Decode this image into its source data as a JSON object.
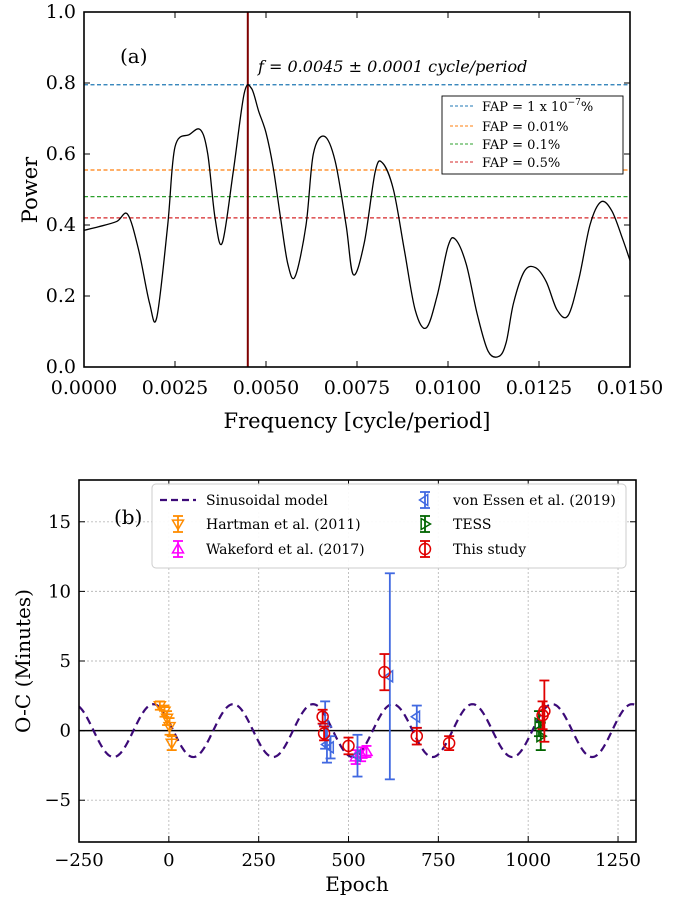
{
  "chart_data": [
    {
      "type": "line",
      "panel_label": "(a)",
      "annotation": "f = 0.0045 ± 0.0001 cycle/period",
      "xlabel": "Frequency [cycle/period]",
      "ylabel": "Power",
      "xlim": [
        0.0,
        0.015
      ],
      "ylim": [
        0.0,
        1.0
      ],
      "xticks": [
        "0.0000",
        "0.0025",
        "0.0050",
        "0.0075",
        "0.0100",
        "0.0125",
        "0.0150"
      ],
      "yticks": [
        "0.0",
        "0.2",
        "0.4",
        "0.6",
        "0.8",
        "1.0"
      ],
      "peak_frequency": 0.0045,
      "peak_color": "#7f0000",
      "fap_lines": [
        {
          "label": "FAP = 1 x 10^-7%",
          "label_main": "FAP = 1 x 10",
          "label_exp": "−7",
          "label_tail": "%",
          "value": 0.795,
          "color": "#1f77b4"
        },
        {
          "label": "FAP = 0.01%",
          "value": 0.555,
          "color": "#ff7f0e"
        },
        {
          "label": "FAP = 0.1%",
          "value": 0.48,
          "color": "#2ca02c"
        },
        {
          "label": "FAP = 0.5%",
          "value": 0.42,
          "color": "#d62728"
        }
      ],
      "series": [
        {
          "name": "",
          "color": "#000000",
          "x": [
            0.0,
            0.0004,
            0.0009,
            0.0012,
            0.0015,
            0.0018,
            0.002,
            0.0023,
            0.0025,
            0.0029,
            0.0032,
            0.0034,
            0.0036,
            0.0038,
            0.0041,
            0.0044,
            0.0046,
            0.0048,
            0.005,
            0.0052,
            0.0054,
            0.0056,
            0.0058,
            0.0061,
            0.0063,
            0.0066,
            0.0069,
            0.0072,
            0.0074,
            0.0077,
            0.008,
            0.0082,
            0.0085,
            0.0088,
            0.0091,
            0.0094,
            0.0097,
            0.01,
            0.0102,
            0.0105,
            0.0108,
            0.0111,
            0.0114,
            0.0116,
            0.0118,
            0.0121,
            0.0124,
            0.0127,
            0.013,
            0.0133,
            0.0136,
            0.0139,
            0.0142,
            0.0145,
            0.0148,
            0.015
          ],
          "y": [
            0.385,
            0.395,
            0.41,
            0.43,
            0.33,
            0.18,
            0.14,
            0.4,
            0.62,
            0.655,
            0.668,
            0.6,
            0.42,
            0.35,
            0.55,
            0.77,
            0.785,
            0.72,
            0.66,
            0.56,
            0.42,
            0.29,
            0.255,
            0.4,
            0.6,
            0.65,
            0.58,
            0.4,
            0.26,
            0.35,
            0.55,
            0.575,
            0.5,
            0.33,
            0.16,
            0.11,
            0.2,
            0.34,
            0.36,
            0.29,
            0.15,
            0.045,
            0.03,
            0.07,
            0.18,
            0.27,
            0.28,
            0.24,
            0.16,
            0.145,
            0.25,
            0.4,
            0.465,
            0.44,
            0.36,
            0.3
          ]
        }
      ]
    },
    {
      "type": "scatter",
      "panel_label": "(b)",
      "xlabel": "Epoch",
      "ylabel": "O-C (Minutes)",
      "xlim": [
        -250,
        1300
      ],
      "ylim": [
        -8,
        18
      ],
      "xticks": [
        "−250",
        "0",
        "250",
        "500",
        "750",
        "1000",
        "1250"
      ],
      "yticks": [
        "−5",
        "0",
        "5",
        "10",
        "15"
      ],
      "grid": true,
      "legend_position": "top",
      "model": {
        "name": "Sinusoidal model",
        "amplitude": 1.9,
        "period": 222,
        "phase_epoch": 179,
        "color": "#3c0a78"
      },
      "series": [
        {
          "name": "Hartman et al. (2011)",
          "marker": "triangle-down",
          "color": "#ff8c00",
          "x": [
            -25,
            -12,
            -5,
            2,
            8
          ],
          "y": [
            1.8,
            1.4,
            0.9,
            0.3,
            -0.9
          ],
          "err": [
            0.3,
            0.4,
            0.5,
            0.6,
            0.5
          ]
        },
        {
          "name": "Wakeford et al. (2017)",
          "marker": "triangle-up",
          "color": "#ff00ff",
          "x": [
            520,
            535,
            550
          ],
          "y": [
            -1.9,
            -1.7,
            -1.5
          ],
          "err": [
            0.5,
            0.5,
            0.4
          ]
        },
        {
          "name": "von Essen et al. (2019)",
          "marker": "diamond-left",
          "color": "#4169e1",
          "x": [
            435,
            440,
            450,
            525,
            615,
            690
          ],
          "y": [
            0.4,
            -1.0,
            -1.2,
            -1.8,
            3.9,
            1.0
          ],
          "err": [
            1.7,
            1.3,
            0.8,
            1.5,
            7.4,
            0.8
          ]
        },
        {
          "name": "TESS",
          "marker": "triangle-right",
          "color": "#006400",
          "x": [
            1030,
            1035
          ],
          "y": [
            0.5,
            -0.4
          ],
          "err": [
            0.9,
            1.0
          ]
        },
        {
          "name": "This study",
          "marker": "circle",
          "color": "#e00000",
          "x": [
            428,
            432,
            500,
            600,
            690,
            780,
            1040,
            1045
          ],
          "y": [
            1.0,
            -0.2,
            -1.1,
            4.2,
            -0.4,
            -0.9,
            1.1,
            1.4
          ],
          "err": [
            0.5,
            0.5,
            0.6,
            1.3,
            0.6,
            0.5,
            1.0,
            2.2
          ]
        }
      ]
    }
  ]
}
